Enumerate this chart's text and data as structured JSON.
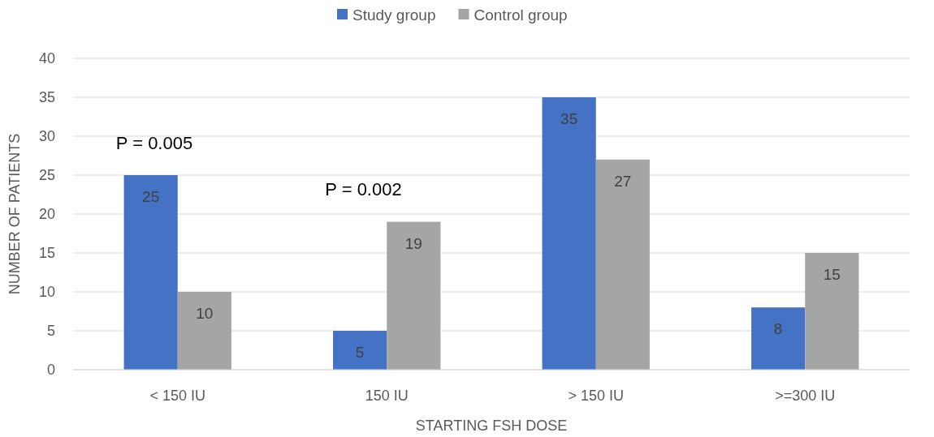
{
  "chart_data": {
    "type": "bar",
    "xlabel": "STARTING FSH DOSE",
    "ylabel": "NUMBER OF PATIENTS",
    "categories": [
      "< 150 IU",
      "150 IU",
      "> 150 IU",
      ">=300 IU"
    ],
    "series": [
      {
        "name": "Study group",
        "color": "#4472c4",
        "values": [
          25,
          5,
          35,
          8
        ]
      },
      {
        "name": "Control group",
        "color": "#a5a5a5",
        "values": [
          10,
          19,
          27,
          15
        ]
      }
    ],
    "ylim": [
      0,
      40
    ],
    "yticks": [
      0,
      5,
      10,
      15,
      20,
      25,
      30,
      35,
      40
    ],
    "grid": "y",
    "legend": "top",
    "data_labels": true,
    "annotations": [
      "P = 0.005",
      "P = 0.002"
    ]
  }
}
